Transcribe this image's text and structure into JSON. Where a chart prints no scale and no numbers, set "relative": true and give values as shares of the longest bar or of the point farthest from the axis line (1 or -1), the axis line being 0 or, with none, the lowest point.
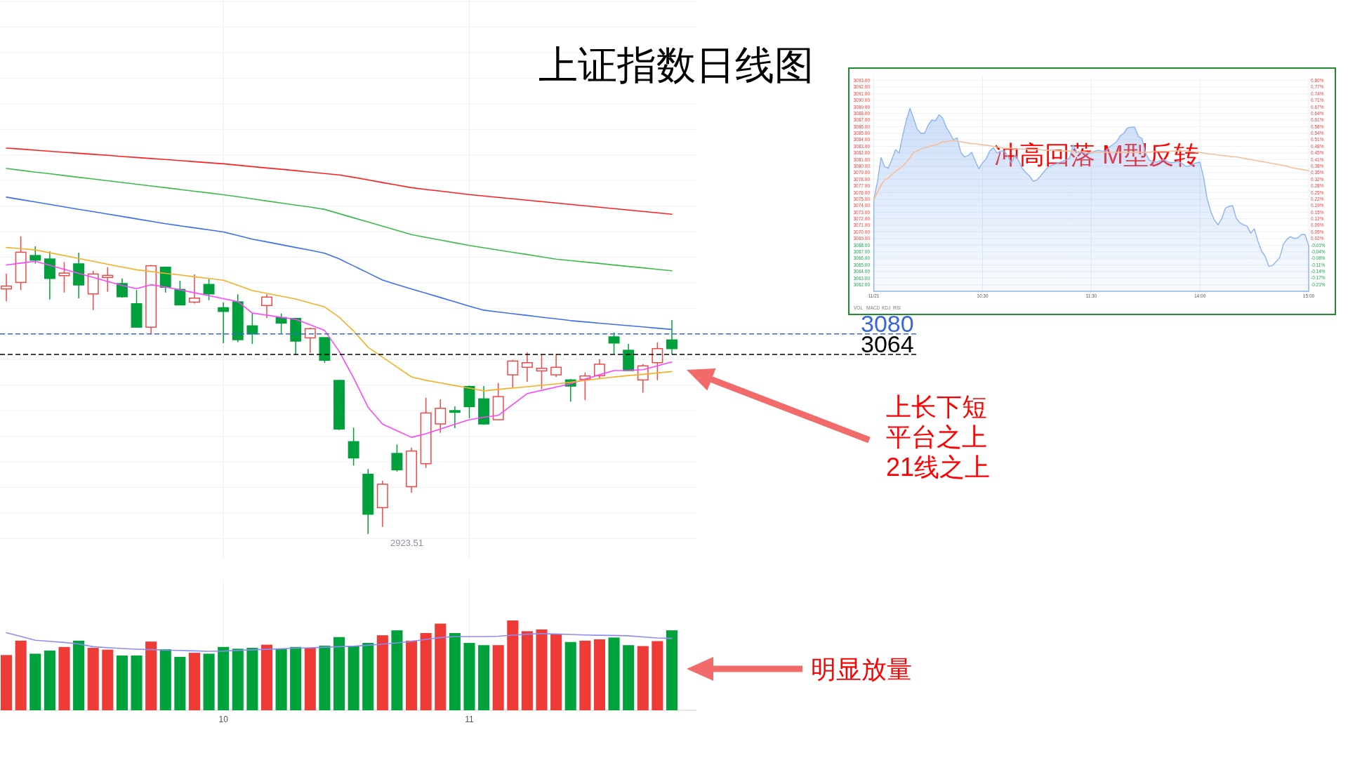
{
  "chart_data": [
    {
      "type": "candlestick",
      "title": "上证指数日线图",
      "categories": [
        null,
        null,
        null,
        null,
        null,
        null,
        null,
        null,
        null,
        null,
        null,
        null,
        null,
        null,
        null,
        "10",
        null,
        null,
        null,
        null,
        null,
        null,
        null,
        null,
        null,
        null,
        null,
        null,
        null,
        null,
        null,
        null,
        "11",
        null,
        null,
        null,
        null,
        null,
        null,
        null,
        null,
        null,
        null,
        null,
        null,
        null,
        null
      ],
      "ohlc": [
        [
          3115.2,
          3127.1,
          3105.5,
          3117.4
        ],
        [
          3120.3,
          3156.4,
          3114.3,
          3143.9
        ],
        [
          3141.3,
          3148.5,
          3135.1,
          3137.7
        ],
        [
          3138.6,
          3144.5,
          3106.9,
          3123.4
        ],
        [
          3125.6,
          3136.2,
          3112.4,
          3127.6
        ],
        [
          3134.8,
          3143.5,
          3107.9,
          3118.3
        ],
        [
          3111.3,
          3129.4,
          3098.7,
          3126.9
        ],
        [
          3124.1,
          3132.2,
          3113.0,
          3125.8
        ],
        [
          3119.4,
          3123.4,
          3108.4,
          3109.1
        ],
        [
          3103.6,
          3114.3,
          3085.3,
          3085.3
        ],
        [
          3085.3,
          3134.0,
          3079.5,
          3133.3
        ],
        [
          3132.2,
          3132.2,
          3112.4,
          3116.5
        ],
        [
          3114.8,
          3121.6,
          3102.7,
          3102.7
        ],
        [
          3104.9,
          3126.5,
          3103.8,
          3108.0
        ],
        [
          3118.7,
          3122.9,
          3106.4,
          3111.3
        ],
        [
          3100.5,
          3104.6,
          3072.7,
          3097.6
        ],
        [
          3105.1,
          3111.0,
          3073.5,
          3075.5
        ],
        [
          3086.3,
          3096.3,
          3072.2,
          3080.0
        ],
        [
          3102.2,
          3111.1,
          3092.3,
          3108.8
        ],
        [
          3092.8,
          3096.0,
          3080.0,
          3088.5
        ],
        [
          3092.1,
          3092.7,
          3063.8,
          3074.4
        ],
        [
          3076.9,
          3085.0,
          3065.2,
          3084.1
        ],
        [
          3077.1,
          3077.1,
          3057.4,
          3059.4
        ],
        [
          3043.6,
          3044.0,
          3004.8,
          3005.6
        ],
        [
          2995.7,
          3006.7,
          2977.0,
          2983.0
        ],
        [
          2970.2,
          2974.3,
          2923.51,
          2939.0
        ],
        [
          2944.1,
          2965.1,
          2929.1,
          2962.4
        ],
        [
          2986.5,
          2993.5,
          2972.4,
          2973.7
        ],
        [
          2960.5,
          2991.1,
          2955.8,
          2988.4
        ],
        [
          2978.5,
          3030.1,
          2975.2,
          3018.2
        ],
        [
          3009.6,
          3028.8,
          3002.6,
          3021.8
        ],
        [
          3020.0,
          3023.3,
          3006.3,
          3018.7
        ],
        [
          3038.9,
          3039.6,
          3014.0,
          3023.1
        ],
        [
          3029.2,
          3039.2,
          3008.9,
          3009.6
        ],
        [
          3012.9,
          3041.6,
          3012.9,
          3031.0
        ],
        [
          3048.0,
          3059.7,
          3038.0,
          3058.8
        ],
        [
          3053.9,
          3065.6,
          3042.5,
          3057.5
        ],
        [
          3051.1,
          3063.8,
          3037.0,
          3053.1
        ],
        [
          3048.0,
          3064.5,
          3046.4,
          3053.9
        ],
        [
          3044.0,
          3044.7,
          3027.0,
          3039.2
        ],
        [
          3044.5,
          3049.7,
          3028.3,
          3047.1
        ],
        [
          3047.3,
          3060.3,
          3044.7,
          3056.3
        ],
        [
          3077.7,
          3081.1,
          3064.5,
          3072.9
        ],
        [
          3067.2,
          3072.2,
          3051.3,
          3051.3
        ],
        [
          3044.0,
          3056.4,
          3034.1,
          3055.0
        ],
        [
          3057.5,
          3073.5,
          3043.8,
          3068.5
        ],
        [
          3075.3,
          3090.8,
          3063.9,
          3068.5
        ]
      ],
      "colors": [
        "#f04848",
        "#f04848",
        "#00a03c",
        "#00a03c",
        "#f04848",
        "#00a03c",
        "#f04848",
        "#f04848",
        "#00a03c",
        "#00a03c",
        "#f04848",
        "#00a03c",
        "#00a03c",
        "#f04848",
        "#00a03c",
        "#00a03c",
        "#00a03c",
        "#00a03c",
        "#f04848",
        "#00a03c",
        "#00a03c",
        "#f04848",
        "#00a03c",
        "#00a03c",
        "#00a03c",
        "#00a03c",
        "#f04848",
        "#00a03c",
        "#f04848",
        "#f04848",
        "#f04848",
        "#00a03c",
        "#00a03c",
        "#00a03c",
        "#f04848",
        "#f04848",
        "#f04848",
        "#f04848",
        "#f04848",
        "#00a03c",
        "#f04848",
        "#f04848",
        "#00a03c",
        "#00a03c",
        "#f04848",
        "#f04848",
        "#00a03c"
      ],
      "series": [
        {
          "type": "line",
          "color": "#ff44ff",
          "values": [
            3134.0,
            3135.4,
            3136.8,
            3133.7,
            3130.5,
            3127.4,
            3124.2,
            3121.1,
            3117.9,
            3115.4,
            3118.5,
            3116.7,
            3114.5,
            3112.2,
            3109.9,
            3107.6,
            3105.3,
            3096.3,
            3094.7,
            3093.0,
            3091.4,
            3087.1,
            3082.7,
            3066.5,
            3045.6,
            3022.7,
            3009.5,
            3004.3,
            2999.1,
            3001.9,
            3005.6,
            3009.3,
            3012.9,
            3014.8,
            3016.3,
            3024.8,
            3033.3,
            3035.9,
            3038.4,
            3041.0,
            3044.6,
            3048.1,
            3051.3,
            3051.5,
            3052.0,
            3055.0,
            3058.0
          ]
        },
        {
          "type": "line",
          "color": "#f5b027",
          "values": [
            3147.6,
            3146.7,
            3145.7,
            3143.5,
            3141.3,
            3139.0,
            3136.8,
            3134.5,
            3132.3,
            3130.2,
            3128.8,
            3127.4,
            3126.1,
            3124.7,
            3123.4,
            3122.0,
            3118.0,
            3113.9,
            3111.7,
            3109.5,
            3107.3,
            3104.2,
            3101.1,
            3093.1,
            3082.3,
            3069.5,
            3061.8,
            3054.1,
            3046.4,
            3043.7,
            3041.7,
            3039.6,
            3037.6,
            3035.5,
            3036.6,
            3037.7,
            3038.7,
            3039.8,
            3040.9,
            3042.2,
            3043.6,
            3045.0,
            3046.3,
            3047.4,
            3048.4,
            3049.5,
            3050.6
          ]
        },
        {
          "type": "line",
          "color": "#3d6ef0",
          "values": [
            3187.0,
            3185.1,
            3183.2,
            3181.3,
            3179.4,
            3177.5,
            3175.7,
            3173.8,
            3171.9,
            3170.0,
            3168.1,
            3166.2,
            3164.6,
            3163.0,
            3161.4,
            3159.8,
            3157.0,
            3154.1,
            3152.0,
            3149.8,
            3147.6,
            3145.5,
            3143.1,
            3138.8,
            3133.2,
            3127.7,
            3122.2,
            3118.6,
            3115.2,
            3111.9,
            3108.5,
            3105.1,
            3101.7,
            3098.6,
            3097.2,
            3095.8,
            3094.5,
            3093.1,
            3091.8,
            3090.4,
            3089.4,
            3088.4,
            3087.4,
            3086.5,
            3085.5,
            3084.5,
            3083.5
          ]
        },
        {
          "type": "line",
          "color": "#3dbb4a",
          "values": [
            3209.4,
            3208.0,
            3206.6,
            3205.3,
            3203.9,
            3202.5,
            3201.2,
            3199.8,
            3198.5,
            3197.1,
            3195.7,
            3194.4,
            3193.0,
            3191.6,
            3190.3,
            3188.9,
            3187.3,
            3185.7,
            3184.0,
            3182.4,
            3180.8,
            3179.2,
            3177.4,
            3174.1,
            3170.8,
            3167.6,
            3164.3,
            3161.0,
            3157.7,
            3155.5,
            3153.4,
            3151.3,
            3149.2,
            3147.4,
            3145.6,
            3143.8,
            3142.1,
            3140.3,
            3138.5,
            3137.4,
            3136.2,
            3135.1,
            3133.9,
            3132.8,
            3131.7,
            3130.5,
            3129.4
          ]
        },
        {
          "type": "line",
          "color": "#ff1f1f",
          "values": [
            3225.4,
            3224.6,
            3223.7,
            3222.9,
            3222.1,
            3221.3,
            3220.5,
            3219.7,
            3218.8,
            3218.0,
            3217.2,
            3216.4,
            3215.6,
            3214.7,
            3213.9,
            3213.1,
            3212.0,
            3210.9,
            3209.8,
            3208.8,
            3207.7,
            3206.6,
            3205.5,
            3204.4,
            3202.5,
            3200.5,
            3198.4,
            3196.4,
            3194.4,
            3193.0,
            3191.7,
            3190.4,
            3189.0,
            3187.9,
            3186.8,
            3185.7,
            3184.6,
            3183.5,
            3182.4,
            3181.3,
            3180.2,
            3179.1,
            3178.0,
            3176.9,
            3175.8,
            3174.7,
            3173.6
          ]
        }
      ],
      "ref_lines": [
        {
          "axis": "y",
          "value": 3080,
          "label": "3080",
          "color": "#3a66d9",
          "line_style": "dashed"
        },
        {
          "axis": "y",
          "value": 3064,
          "label": "3064",
          "color": "#000000",
          "line_style": "dashed"
        }
      ],
      "annotations": [
        "2923.51",
        "上长下短平台之上21线之上"
      ],
      "ylim": [
        2904.2,
        3341.2
      ],
      "yticks": [
        {
          "value": 2920,
          "label": null
        },
        {
          "value": 2940,
          "label": null
        },
        {
          "value": 2960,
          "label": null
        },
        {
          "value": 2980,
          "label": null
        },
        {
          "value": 3000,
          "label": null
        },
        {
          "value": 3020,
          "label": null
        },
        {
          "value": 3040,
          "label": null
        },
        {
          "value": 3060,
          "label": null
        },
        {
          "value": 3080,
          "label": null
        },
        {
          "value": 3100,
          "label": null
        },
        {
          "value": 3120,
          "label": null
        },
        {
          "value": 3140,
          "label": null
        },
        {
          "value": 3160,
          "label": null
        },
        {
          "value": 3180,
          "label": null
        },
        {
          "value": 3200,
          "label": null
        },
        {
          "value": 3220,
          "label": null
        },
        {
          "value": 3240,
          "label": null
        },
        {
          "value": 3260,
          "label": null
        },
        {
          "value": 3280,
          "label": null
        },
        {
          "value": 3300,
          "label": null
        },
        {
          "value": 3320,
          "label": null
        },
        {
          "value": 3340,
          "label": null
        }
      ],
      "grid": true,
      "tick_labels": false
    },
    {
      "type": "bar",
      "relative": true,
      "categories": [
        null,
        null,
        null,
        null,
        null,
        null,
        null,
        null,
        null,
        null,
        null,
        null,
        null,
        null,
        null,
        "10",
        null,
        null,
        null,
        null,
        null,
        null,
        null,
        null,
        null,
        null,
        null,
        null,
        null,
        null,
        null,
        null,
        "11",
        null,
        null,
        null,
        null,
        null,
        null,
        null,
        null,
        null,
        null,
        null,
        null,
        null,
        null
      ],
      "values": [
        0.615,
        0.775,
        0.63,
        0.665,
        0.705,
        0.775,
        0.695,
        0.675,
        0.61,
        0.61,
        0.765,
        0.68,
        0.595,
        0.64,
        0.63,
        0.705,
        0.685,
        0.695,
        0.73,
        0.685,
        0.705,
        0.695,
        0.72,
        0.815,
        0.715,
        0.75,
        0.835,
        0.89,
        0.775,
        0.86,
        0.965,
        0.86,
        0.75,
        0.725,
        0.725,
        1,
        0.88,
        0.9,
        0.845,
        0.76,
        0.775,
        0.79,
        0.81,
        0.725,
        0.715,
        0.77,
        0.89
      ],
      "colors": [
        "#ef3b36",
        "#ef3b36",
        "#00a23c",
        "#00a23c",
        "#ef3b36",
        "#00a23c",
        "#ef3b36",
        "#ef3b36",
        "#00a23c",
        "#00a23c",
        "#ef3b36",
        "#00a23c",
        "#00a23c",
        "#ef3b36",
        "#00a23c",
        "#00a23c",
        "#00a23c",
        "#00a23c",
        "#ef3b36",
        "#00a23c",
        "#00a23c",
        "#ef3b36",
        "#00a23c",
        "#00a23c",
        "#00a23c",
        "#00a23c",
        "#ef3b36",
        "#00a23c",
        "#ef3b36",
        "#ef3b36",
        "#ef3b36",
        "#00a23c",
        "#00a23c",
        "#00a23c",
        "#ef3b36",
        "#ef3b36",
        "#ef3b36",
        "#ef3b36",
        "#ef3b36",
        "#00a23c",
        "#ef3b36",
        "#ef3b36",
        "#00a23c",
        "#00a23c",
        "#ef3b36",
        "#ef3b36",
        "#00a23c"
      ],
      "series": [
        {
          "type": "line",
          "color": "#8c8cf5",
          "values": [
            0.863,
            0.822,
            0.78,
            0.768,
            0.755,
            0.739,
            0.708,
            0.697,
            0.688,
            0.68,
            0.675,
            0.67,
            0.666,
            0.661,
            0.657,
            0.659,
            0.666,
            0.673,
            0.679,
            0.685,
            0.691,
            0.696,
            0.702,
            0.708,
            0.714,
            0.724,
            0.737,
            0.75,
            0.768,
            0.789,
            0.81,
            0.82,
            0.82,
            0.82,
            0.825,
            0.836,
            0.847,
            0.854,
            0.849,
            0.844,
            0.838,
            0.835,
            0.833,
            0.829,
            0.817,
            0.805,
            0.8
          ]
        }
      ],
      "annotations": [
        "明显放量"
      ],
      "grid": "x",
      "tick_labels": "x"
    },
    {
      "type": "area",
      "categories": [
        "11/21",
        null,
        null,
        null,
        null,
        null,
        null,
        null,
        null,
        null,
        null,
        null,
        null,
        null,
        null,
        null,
        null,
        null,
        null,
        null,
        null,
        null,
        null,
        null,
        null,
        null,
        null,
        null,
        null,
        null,
        "10:30",
        null,
        null,
        null,
        null,
        null,
        null,
        null,
        null,
        null,
        null,
        null,
        null,
        null,
        null,
        null,
        null,
        null,
        null,
        null,
        null,
        null,
        null,
        null,
        null,
        null,
        null,
        null,
        null,
        null,
        "11:30",
        null,
        null,
        null,
        null,
        null,
        null,
        null,
        null,
        null,
        null,
        null,
        null,
        null,
        null,
        null,
        null,
        null,
        null,
        null,
        null,
        null,
        null,
        null,
        null,
        null,
        null,
        null,
        null,
        null,
        "14:00",
        null,
        null,
        null,
        null,
        null,
        null,
        null,
        null,
        null,
        null,
        null,
        null,
        null,
        null,
        null,
        null,
        null,
        null,
        null,
        null,
        null,
        null,
        null,
        null,
        null,
        null,
        null,
        null,
        null,
        "15:00"
      ],
      "series": [
        {
          "color": "#8db4f0",
          "values": [
            3074.9,
            3077.6,
            3081.3,
            3079.9,
            3079.7,
            3081.0,
            3082.5,
            3082.0,
            3084.7,
            3087.0,
            3088.8,
            3087.2,
            3085.6,
            3085.0,
            3085.0,
            3086.2,
            3087.0,
            3086.9,
            3087.8,
            3087.3,
            3085.9,
            3085.0,
            3084.0,
            3084.3,
            3082.1,
            3081.4,
            3081.6,
            3082.1,
            3080.8,
            3079.6,
            3080.5,
            3081.1,
            3082.3,
            3082.8,
            3082.0,
            3082.3,
            3082.3,
            3081.5,
            3080.5,
            3081.7,
            3080.8,
            3079.6,
            3079.0,
            3078.5,
            3077.7,
            3077.9,
            3078.5,
            3079.2,
            3079.8,
            3080.1,
            3080.3,
            3080.5,
            3080.7,
            3080.9,
            3081.2,
            3083.2,
            3082.2,
            3082.0,
            3082.0,
            3081.9,
            3082.0,
            3082.3,
            3082.4,
            3082.3,
            3082.3,
            3082.9,
            3083.3,
            3083.7,
            3084.6,
            3085.0,
            3085.8,
            3085.9,
            3085.9,
            3084.5,
            3084.2,
            3082.0,
            3080.9,
            3080.7,
            3080.6,
            3080.8,
            3081.0,
            3080.7,
            3080.5,
            3080.6,
            3080.7,
            3080.4,
            3080.0,
            3080.0,
            3080.3,
            3080.5,
            3080.6,
            3078.3,
            3075.0,
            3073.1,
            3071.8,
            3071.1,
            3072.0,
            3073.6,
            3073.9,
            3074.0,
            3072.1,
            3071.4,
            3071.1,
            3070.9,
            3069.8,
            3070.5,
            3068.6,
            3067.1,
            3066.3,
            3064.8,
            3064.9,
            3065.5,
            3066.1,
            3068.1,
            3068.9,
            3069.3,
            3069.0,
            3069.1,
            3069.6,
            3069.6,
            3067.9
          ]
        },
        {
          "type": "line",
          "color": "#f5bf9a",
          "values": [
            3074.9,
            3076.0,
            3077.1,
            3077.9,
            3078.2,
            3078.7,
            3079.2,
            3079.6,
            3080.0,
            3080.6,
            3081.3,
            3082.1,
            3082.3,
            3082.6,
            3082.8,
            3082.9,
            3083.1,
            3083.2,
            3083.4,
            3083.7,
            3083.7,
            3083.8,
            3083.9,
            3083.8,
            3083.7,
            3083.6,
            3083.5,
            3083.4,
            3083.4,
            3083.3,
            3083.2,
            3083.2,
            3083.1,
            3083.0,
            3082.9,
            3082.8,
            3082.7,
            3082.7,
            3082.7,
            3082.6,
            3082.6,
            3082.6,
            3082.6,
            3082.5,
            3082.5,
            3082.5,
            3082.5,
            3082.4,
            3082.4,
            3082.4,
            3082.4,
            3082.3,
            3082.3,
            3082.3,
            3082.3,
            3082.2,
            3082.2,
            3082.2,
            3082.2,
            3082.1,
            3082.1,
            3082.1,
            3082.1,
            3082.1,
            3082.1,
            3082.1,
            3082.1,
            3082.1,
            3082.1,
            3082.1,
            3082.1,
            3082.1,
            3082.1,
            3082.1,
            3082.1,
            3082.1,
            3082.1,
            3082.2,
            3082.2,
            3082.2,
            3082.2,
            3082.2,
            3082.3,
            3082.3,
            3082.3,
            3082.3,
            3082.3,
            3082.2,
            3082.2,
            3082.1,
            3082.1,
            3082.0,
            3081.9,
            3081.8,
            3081.8,
            3081.7,
            3081.6,
            3081.6,
            3081.5,
            3081.4,
            3081.4,
            3081.3,
            3081.2,
            3081.1,
            3081.0,
            3080.9,
            3080.8,
            3080.7,
            3080.6,
            3080.5,
            3080.4,
            3080.3,
            3080.2,
            3080.1,
            3080.0,
            3079.8,
            3079.7,
            3079.6,
            3079.5,
            3079.4,
            3079.3
          ]
        }
      ],
      "annotations": [
        "冲高回落 M型反转",
        "VOL",
        "MACD",
        "KDJ",
        "RSI"
      ],
      "ylim": [
        3061,
        3093.5
      ],
      "yticks": [
        {
          "value": 3062,
          "label": "3062.00"
        },
        {
          "value": 3063,
          "label": "3063.00"
        },
        {
          "value": 3064,
          "label": "3064.00"
        },
        {
          "value": 3065,
          "label": "3065.00"
        },
        {
          "value": 3066,
          "label": "3066.00"
        },
        {
          "value": 3067,
          "label": "3067.00"
        },
        {
          "value": 3068,
          "label": "3068.00"
        },
        {
          "value": 3069,
          "label": "3069.00"
        },
        {
          "value": 3070,
          "label": "3070.00"
        },
        {
          "value": 3071,
          "label": "3071.00"
        },
        {
          "value": 3072,
          "label": "3072.00"
        },
        {
          "value": 3073,
          "label": "3073.00"
        },
        {
          "value": 3074,
          "label": "3074.00"
        },
        {
          "value": 3075,
          "label": "3075.00"
        },
        {
          "value": 3076,
          "label": "3076.00"
        },
        {
          "value": 3077,
          "label": "3077.00"
        },
        {
          "value": 3078,
          "label": "3078.00"
        },
        {
          "value": 3079,
          "label": "3079.00"
        },
        {
          "value": 3080,
          "label": "3080.00"
        },
        {
          "value": 3081,
          "label": "3081.00"
        },
        {
          "value": 3082,
          "label": "3082.00"
        },
        {
          "value": 3083,
          "label": "3083.00"
        },
        {
          "value": 3084,
          "label": "3084.00"
        },
        {
          "value": 3085,
          "label": "3085.00"
        },
        {
          "value": 3086,
          "label": "3086.00"
        },
        {
          "value": 3087,
          "label": "3087.00"
        },
        {
          "value": 3088,
          "label": "3088.00"
        },
        {
          "value": 3089,
          "label": "3089.00"
        },
        {
          "value": 3090,
          "label": "3090.00"
        },
        {
          "value": 3091,
          "label": "3091.00"
        },
        {
          "value": 3092,
          "label": "3092.00"
        },
        {
          "value": 3093,
          "label": "3093.00"
        }
      ],
      "y2lim": [
        -0.2391,
        0.8198
      ],
      "y2ticks": [
        {
          "value": 0.8035,
          "label": "0.80%"
        },
        {
          "value": 0.7709,
          "label": "0.77%"
        },
        {
          "value": 0.7383,
          "label": "0.74%"
        },
        {
          "value": 0.7058,
          "label": "0.71%"
        },
        {
          "value": 0.6732,
          "label": "0.67%"
        },
        {
          "value": 0.6406,
          "label": "0.64%"
        },
        {
          "value": 0.608,
          "label": "0.61%"
        },
        {
          "value": 0.5754,
          "label": "0.58%"
        },
        {
          "value": 0.5429,
          "label": "0.54%"
        },
        {
          "value": 0.5103,
          "label": "0.51%"
        },
        {
          "value": 0.4777,
          "label": "0.48%"
        },
        {
          "value": 0.4451,
          "label": "0.45%"
        },
        {
          "value": 0.4125,
          "label": "0.41%"
        },
        {
          "value": 0.38,
          "label": "0.38%"
        },
        {
          "value": 0.3474,
          "label": "0.35%"
        },
        {
          "value": 0.315,
          "label": "0.32%"
        },
        {
          "value": 0.2822,
          "label": "0.28%"
        },
        {
          "value": 0.2496,
          "label": "0.25%"
        },
        {
          "value": 0.2171,
          "label": "0.22%"
        },
        {
          "value": 0.185,
          "label": "0.19%"
        },
        {
          "value": 0.1519,
          "label": "0.15%"
        },
        {
          "value": 0.1193,
          "label": "0.12%"
        },
        {
          "value": 0.0867,
          "label": "0.09%"
        },
        {
          "value": 0.0542,
          "label": "0.05%"
        },
        {
          "value": 0.0216,
          "label": "0.02%"
        },
        {
          "value": -0.011,
          "label": "-0.01%"
        },
        {
          "value": -0.0436,
          "label": "-0.04%"
        },
        {
          "value": -0.0762,
          "label": "-0.08%"
        },
        {
          "value": -0.1087,
          "label": "-0.11%"
        },
        {
          "value": -0.1413,
          "label": "-0.14%"
        },
        {
          "value": -0.1739,
          "label": "-0.17%"
        },
        {
          "value": -0.2065,
          "label": "-0.21%"
        }
      ],
      "grid": true
    }
  ]
}
